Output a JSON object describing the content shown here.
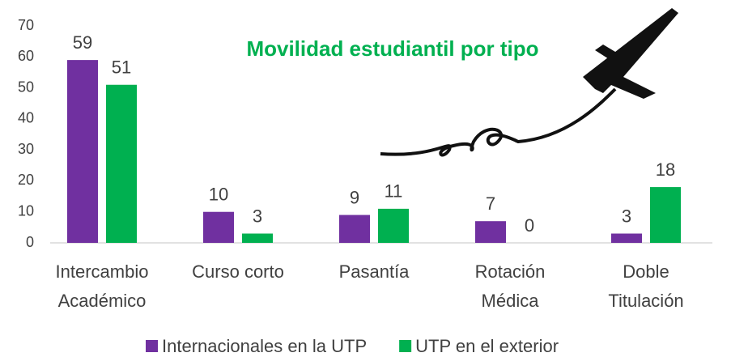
{
  "chart_data": {
    "type": "bar",
    "title": "Movilidad estudiantil por tipo",
    "categories": [
      "Intercambio Académico",
      "Curso corto",
      "Pasantía",
      "Rotación Médica",
      "Doble Titulación"
    ],
    "series": [
      {
        "name": "Internacionales en la UTP",
        "color": "#7030a0",
        "values": [
          59,
          10,
          9,
          7,
          3
        ]
      },
      {
        "name": "UTP en el exterior",
        "color": "#00b050",
        "values": [
          51,
          3,
          11,
          0,
          18
        ]
      }
    ],
    "ylim": [
      0,
      70
    ],
    "yticks": [
      0,
      10,
      20,
      30,
      40,
      50,
      60,
      70
    ],
    "grid": false,
    "legend": "bottom"
  }
}
